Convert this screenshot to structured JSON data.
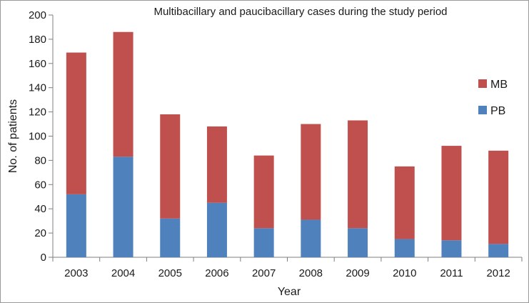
{
  "chart_data": {
    "type": "bar",
    "stacked": true,
    "title": "Multibacillary and paucibacillary cases during the study period",
    "xlabel": "Year",
    "ylabel": "No. of patients",
    "ylim": [
      0,
      200
    ],
    "yticks": [
      0,
      20,
      40,
      60,
      80,
      100,
      120,
      140,
      160,
      180,
      200
    ],
    "categories": [
      "2003",
      "2004",
      "2005",
      "2006",
      "2007",
      "2008",
      "2009",
      "2010",
      "2011",
      "2012"
    ],
    "series": [
      {
        "name": "PB",
        "color": "#4f81bd",
        "values": [
          52,
          83,
          32,
          45,
          24,
          31,
          24,
          15,
          14,
          11
        ]
      },
      {
        "name": "MB",
        "color": "#c0504d",
        "values": [
          117,
          103,
          86,
          63,
          60,
          79,
          89,
          60,
          78,
          77
        ]
      }
    ],
    "grid": false,
    "legend": {
      "position": "right",
      "order": [
        "MB",
        "PB"
      ]
    }
  }
}
